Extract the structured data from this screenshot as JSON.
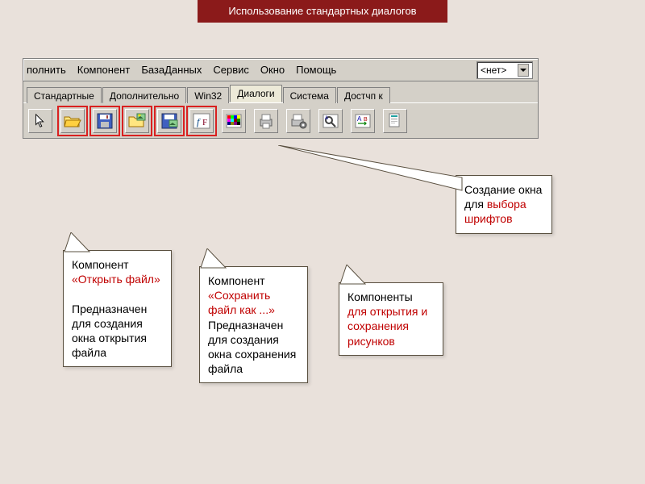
{
  "title": "Использование стандартных диалогов",
  "menu": {
    "items": [
      "полнить",
      "Компонент",
      "БазаДанных",
      "Сервис",
      "Окно",
      "Помощь"
    ],
    "dropdown": "<нет>"
  },
  "tabs": [
    "Стандартные",
    "Дополнительно",
    "Win32",
    "Диалоги",
    "Система",
    "Достчп к"
  ],
  "activeTab": 3,
  "paletteIcons": [
    {
      "name": "cursor-icon",
      "type": "cursor",
      "highlight": false
    },
    {
      "name": "open-dialog-icon",
      "type": "open",
      "highlight": true
    },
    {
      "name": "save-dialog-icon",
      "type": "save",
      "highlight": true
    },
    {
      "name": "open-picture-dialog-icon",
      "type": "openpic",
      "highlight": true
    },
    {
      "name": "save-picture-dialog-icon",
      "type": "savepic",
      "highlight": true
    },
    {
      "name": "font-dialog-icon",
      "type": "font",
      "highlight": true
    },
    {
      "name": "color-dialog-icon",
      "type": "color",
      "highlight": false
    },
    {
      "name": "print-dialog-icon",
      "type": "print",
      "highlight": false
    },
    {
      "name": "printer-setup-icon",
      "type": "printersetup",
      "highlight": false
    },
    {
      "name": "find-dialog-icon",
      "type": "find",
      "highlight": false
    },
    {
      "name": "replace-dialog-icon",
      "type": "replace",
      "highlight": false
    },
    {
      "name": "page-setup-icon",
      "type": "pagesetup",
      "highlight": false
    }
  ],
  "callouts": {
    "c1": {
      "line1": "  Компонент",
      "red1": "«Открыть файл»",
      "line2": "  Предназначен для создания окна открытия файла"
    },
    "c2": {
      "line1": "  Компонент",
      "red1": "«Сохранить файл как ...»",
      "line2": "Предназначен для создания окна сохранения файла"
    },
    "c3": {
      "line1": "  Компоненты",
      "red1": "для открытия и сохранения рисунков"
    },
    "c4": {
      "line1": "  Создание окна для",
      "red1": "выбора шрифтов"
    }
  },
  "colors": {
    "titleBg": "#8b1a1a",
    "bodyBg": "#e9e1db",
    "panelBg": "#d4d0c8",
    "highlight": "#d92020",
    "redText": "#c00000"
  }
}
